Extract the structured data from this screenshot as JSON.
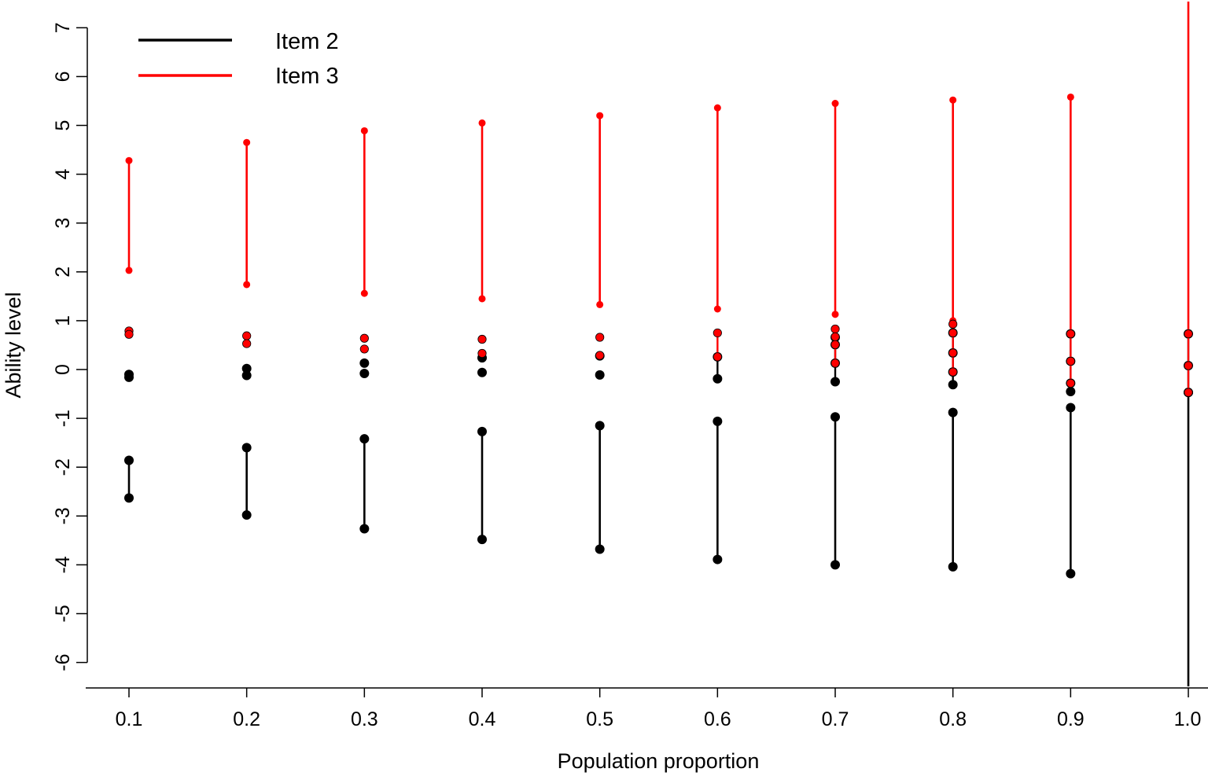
{
  "chart_data": {
    "type": "scatter",
    "xlabel": "Population proportion",
    "ylabel": "Ability level",
    "xlim": [
      0.1,
      1.0
    ],
    "ylim": [
      -6,
      7
    ],
    "x_ticks": [
      "0.1",
      "0.2",
      "0.3",
      "0.4",
      "0.5",
      "0.6",
      "0.7",
      "0.8",
      "0.9",
      "1.0"
    ],
    "y_ticks": [
      "-6",
      "-5",
      "-4",
      "-3",
      "-2",
      "-1",
      "0",
      "1",
      "2",
      "3",
      "4",
      "5",
      "6",
      "7"
    ],
    "grid": false,
    "legend_position": "top-left",
    "series": [
      {
        "name": "Item 2",
        "color": "#000000",
        "intervals": [
          {
            "x": 0.1,
            "low": -2.63,
            "high": -1.86
          },
          {
            "x": 0.2,
            "low": -2.98,
            "high": -1.6
          },
          {
            "x": 0.3,
            "low": -3.26,
            "high": -1.42
          },
          {
            "x": 0.4,
            "low": -3.48,
            "high": -1.27
          },
          {
            "x": 0.5,
            "low": -3.68,
            "high": -1.15
          },
          {
            "x": 0.6,
            "low": -3.89,
            "high": -1.06
          },
          {
            "x": 0.7,
            "low": -4.0,
            "high": -0.97
          },
          {
            "x": 0.8,
            "low": -4.04,
            "high": -0.88
          },
          {
            "x": 0.9,
            "low": -4.18,
            "high": -0.78
          },
          {
            "x": 1.0,
            "low": -7.2,
            "high": -0.47
          }
        ],
        "points": [
          {
            "x": 0.1,
            "y": -0.1
          },
          {
            "x": 0.1,
            "y": -0.16
          },
          {
            "x": 0.2,
            "y": 0.02
          },
          {
            "x": 0.2,
            "y": -0.12
          },
          {
            "x": 0.3,
            "y": 0.13
          },
          {
            "x": 0.3,
            "y": -0.08
          },
          {
            "x": 0.4,
            "y": 0.24
          },
          {
            "x": 0.4,
            "y": -0.06
          },
          {
            "x": 0.5,
            "y": 0.28
          },
          {
            "x": 0.5,
            "y": -0.11
          },
          {
            "x": 0.6,
            "y": 0.26
          },
          {
            "x": 0.6,
            "y": -0.19
          },
          {
            "x": 0.7,
            "y": 0.66
          },
          {
            "x": 0.7,
            "y": 0.51
          },
          {
            "x": 0.7,
            "y": 0.13
          },
          {
            "x": 0.7,
            "y": -0.25
          },
          {
            "x": 0.8,
            "y": 0.75
          },
          {
            "x": 0.8,
            "y": 0.34
          },
          {
            "x": 0.8,
            "y": -0.05
          },
          {
            "x": 0.8,
            "y": -0.31
          },
          {
            "x": 0.9,
            "y": 0.73
          },
          {
            "x": 0.9,
            "y": 0.17
          },
          {
            "x": 0.9,
            "y": -0.28
          },
          {
            "x": 0.9,
            "y": -0.45
          },
          {
            "x": 1.0,
            "y": 0.73
          },
          {
            "x": 1.0,
            "y": 0.08
          },
          {
            "x": 1.0,
            "y": -0.47
          }
        ],
        "connectors": [
          {
            "x": 0.6,
            "low": -0.19,
            "high": 0.26
          },
          {
            "x": 0.7,
            "low": -0.25,
            "high": 0.66
          },
          {
            "x": 0.8,
            "low": -0.31,
            "high": 0.75
          },
          {
            "x": 0.9,
            "low": -0.45,
            "high": 0.73
          },
          {
            "x": 1.0,
            "low": -0.47,
            "high": 0.73
          }
        ]
      },
      {
        "name": "Item 3",
        "color": "#ff0000",
        "intervals": [
          {
            "x": 0.1,
            "low": 2.03,
            "high": 4.28
          },
          {
            "x": 0.2,
            "low": 1.74,
            "high": 4.65
          },
          {
            "x": 0.3,
            "low": 1.56,
            "high": 4.89
          },
          {
            "x": 0.4,
            "low": 1.45,
            "high": 5.05
          },
          {
            "x": 0.5,
            "low": 1.33,
            "high": 5.2
          },
          {
            "x": 0.6,
            "low": 1.24,
            "high": 5.36
          },
          {
            "x": 0.7,
            "low": 1.13,
            "high": 5.45
          },
          {
            "x": 0.8,
            "low": 1.0,
            "high": 5.52
          },
          {
            "x": 0.9,
            "low": 0.73,
            "high": 5.58
          },
          {
            "x": 1.0,
            "low": 0.73,
            "high": 7.6
          }
        ],
        "points": [
          {
            "x": 0.1,
            "y": 0.79
          },
          {
            "x": 0.1,
            "y": 0.72
          },
          {
            "x": 0.2,
            "y": 0.69
          },
          {
            "x": 0.2,
            "y": 0.53
          },
          {
            "x": 0.3,
            "y": 0.64
          },
          {
            "x": 0.3,
            "y": 0.42
          },
          {
            "x": 0.4,
            "y": 0.62
          },
          {
            "x": 0.4,
            "y": 0.33
          },
          {
            "x": 0.5,
            "y": 0.66
          },
          {
            "x": 0.5,
            "y": 0.29
          },
          {
            "x": 0.6,
            "y": 0.75
          },
          {
            "x": 0.6,
            "y": 0.26
          },
          {
            "x": 0.7,
            "y": 0.83
          },
          {
            "x": 0.7,
            "y": 0.67
          },
          {
            "x": 0.7,
            "y": 0.51
          },
          {
            "x": 0.7,
            "y": 0.13
          },
          {
            "x": 0.8,
            "y": 0.93
          },
          {
            "x": 0.8,
            "y": 0.75
          },
          {
            "x": 0.8,
            "y": 0.34
          },
          {
            "x": 0.8,
            "y": -0.05
          },
          {
            "x": 0.9,
            "y": 0.73
          },
          {
            "x": 0.9,
            "y": 0.17
          },
          {
            "x": 0.9,
            "y": -0.28
          },
          {
            "x": 1.0,
            "y": 0.73
          },
          {
            "x": 1.0,
            "y": 0.08
          },
          {
            "x": 1.0,
            "y": -0.47
          }
        ],
        "connectors": [
          {
            "x": 0.6,
            "low": 0.26,
            "high": 0.75
          },
          {
            "x": 0.7,
            "low": 0.13,
            "high": 0.83
          },
          {
            "x": 0.8,
            "low": -0.05,
            "high": 0.93
          },
          {
            "x": 0.9,
            "low": -0.28,
            "high": 0.73
          },
          {
            "x": 1.0,
            "low": -0.47,
            "high": 0.73
          }
        ]
      }
    ]
  }
}
